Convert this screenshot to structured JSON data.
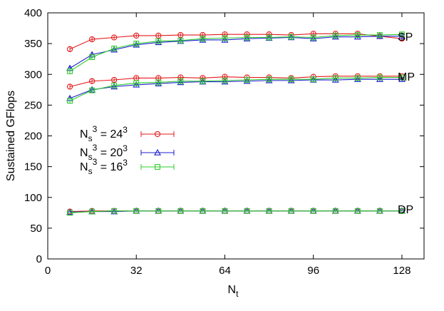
{
  "chart_data": {
    "type": "line",
    "xlabel": "N_t",
    "ylabel": "Sustained GFlops",
    "xlim": [
      0,
      136
    ],
    "ylim": [
      0,
      400
    ],
    "x_ticks": [
      0,
      32,
      64,
      96,
      128
    ],
    "y_ticks": [
      0,
      50,
      100,
      150,
      200,
      250,
      300,
      350,
      400
    ],
    "grid": false,
    "legend_position": "middle-left",
    "annotations": [
      {
        "text": "SP",
        "near_x": 128,
        "near_y": 360
      },
      {
        "text": "MP",
        "near_x": 128,
        "near_y": 294
      },
      {
        "text": "DP",
        "near_x": 128,
        "near_y": 80
      }
    ],
    "x": [
      8,
      16,
      24,
      32,
      40,
      48,
      56,
      64,
      72,
      80,
      88,
      96,
      104,
      112,
      120,
      128
    ],
    "series": [
      {
        "name": "N_s^3 = 24^3",
        "color": "#e31a1c",
        "marker": "circle",
        "group": "SP",
        "values": [
          341,
          357,
          360,
          363,
          363,
          364,
          364,
          365,
          365,
          365,
          364,
          366,
          366,
          366,
          362,
          358
        ]
      },
      {
        "name": "N_s^3 = 20^3",
        "color": "#1f1fd0",
        "marker": "triangle",
        "group": "SP",
        "values": [
          310,
          332,
          340,
          348,
          352,
          354,
          356,
          356,
          358,
          359,
          360,
          358,
          361,
          361,
          362,
          362
        ]
      },
      {
        "name": "N_s^3 = 16^3",
        "color": "#2ecc2e",
        "marker": "square",
        "group": "SP",
        "values": [
          305,
          328,
          342,
          350,
          354,
          355,
          358,
          359,
          360,
          360,
          361,
          360,
          363,
          364,
          364,
          365
        ]
      },
      {
        "name": "N_s^3 = 24^3",
        "color": "#e31a1c",
        "marker": "circle",
        "group": "MP",
        "values": [
          280,
          289,
          291,
          294,
          294,
          295,
          294,
          296,
          295,
          295,
          294,
          296,
          297,
          297,
          297,
          297
        ]
      },
      {
        "name": "N_s^3 = 20^3",
        "color": "#1f1fd0",
        "marker": "triangle",
        "group": "MP",
        "values": [
          261,
          275,
          280,
          283,
          285,
          287,
          288,
          288,
          289,
          290,
          290,
          291,
          291,
          292,
          292,
          292
        ]
      },
      {
        "name": "N_s^3 = 16^3",
        "color": "#2ecc2e",
        "marker": "square",
        "group": "MP",
        "values": [
          257,
          274,
          282,
          286,
          287,
          289,
          289,
          290,
          291,
          292,
          292,
          292,
          294,
          294,
          295,
          295
        ]
      },
      {
        "name": "N_s^3 = 24^3",
        "color": "#e31a1c",
        "marker": "circle",
        "group": "DP",
        "values": [
          77,
          78,
          78,
          78,
          78,
          78,
          78,
          78,
          78,
          78,
          78,
          78,
          78,
          78,
          78,
          78
        ]
      },
      {
        "name": "N_s^3 = 20^3",
        "color": "#1f1fd0",
        "marker": "triangle",
        "group": "DP",
        "values": [
          76,
          77,
          77,
          78,
          78,
          78,
          78,
          78,
          78,
          78,
          78,
          78,
          78,
          78,
          78,
          78
        ]
      },
      {
        "name": "N_s^3 = 16^3",
        "color": "#2ecc2e",
        "marker": "square",
        "group": "DP",
        "values": [
          75,
          77,
          78,
          78,
          78,
          78,
          78,
          78,
          78,
          78,
          78,
          78,
          78,
          78,
          78,
          78
        ]
      }
    ],
    "legend": [
      {
        "base": "N",
        "sub": "s",
        "sup": "3",
        "rhs": " = 24",
        "rhs_sup": "3",
        "color": "#e31a1c",
        "marker": "circle"
      },
      {
        "base": "N",
        "sub": "s",
        "sup": "3",
        "rhs": " = 20",
        "rhs_sup": "3",
        "color": "#1f1fd0",
        "marker": "triangle"
      },
      {
        "base": "N",
        "sub": "s",
        "sup": "3",
        "rhs": " = 16",
        "rhs_sup": "3",
        "color": "#2ecc2e",
        "marker": "square"
      }
    ],
    "xlabel_parts": {
      "base": "N",
      "sub": "t"
    }
  }
}
